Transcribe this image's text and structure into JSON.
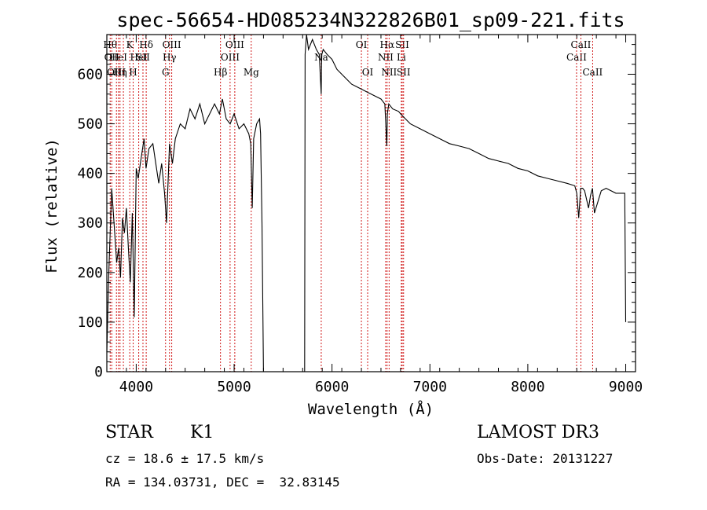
{
  "chart_data": {
    "type": "line",
    "title": "spec-56654-HD085234N322826B01_sp09-221.fits",
    "xlabel": "Wavelength (Å)",
    "ylabel": "Flux (relative)",
    "xlim": [
      3700,
      9100
    ],
    "ylim": [
      0,
      680
    ],
    "xticks": [
      4000,
      5000,
      6000,
      7000,
      8000,
      9000
    ],
    "yticks": [
      0,
      100,
      200,
      300,
      400,
      500,
      600
    ],
    "line_color": "#000000",
    "marker_color": "#cc0000",
    "series": [
      {
        "name": "flux",
        "x": [
          3700,
          3720,
          3750,
          3780,
          3800,
          3820,
          3840,
          3860,
          3880,
          3900,
          3920,
          3940,
          3960,
          3980,
          4000,
          4020,
          4050,
          4080,
          4100,
          4130,
          4170,
          4200,
          4230,
          4260,
          4290,
          4310,
          4340,
          4370,
          4400,
          4450,
          4500,
          4550,
          4600,
          4650,
          4700,
          4750,
          4800,
          4850,
          4880,
          4920,
          4960,
          5000,
          5050,
          5100,
          5150,
          5170,
          5185,
          5200,
          5230,
          5260,
          5270,
          5285,
          5300,
          5720,
          5725,
          5740,
          5760,
          5800,
          5840,
          5870,
          5890,
          5893,
          5896,
          5910,
          5950,
          6000,
          6050,
          6100,
          6150,
          6200,
          6250,
          6300,
          6350,
          6400,
          6450,
          6500,
          6540,
          6560,
          6565,
          6580,
          6620,
          6680,
          6700,
          6750,
          6800,
          6900,
          7000,
          7100,
          7200,
          7300,
          7400,
          7500,
          7600,
          7700,
          7800,
          7900,
          8000,
          8100,
          8200,
          8300,
          8400,
          8480,
          8500,
          8520,
          8540,
          8560,
          8580,
          8620,
          8640,
          8660,
          8680,
          8750,
          8800,
          8850,
          8900,
          8960,
          8990,
          9000
        ],
        "y": [
          40,
          200,
          370,
          280,
          220,
          250,
          190,
          310,
          280,
          330,
          250,
          180,
          320,
          110,
          410,
          390,
          430,
          470,
          410,
          450,
          460,
          420,
          380,
          420,
          360,
          300,
          460,
          420,
          470,
          500,
          490,
          530,
          510,
          540,
          500,
          520,
          540,
          520,
          550,
          510,
          500,
          520,
          490,
          500,
          480,
          460,
          330,
          470,
          500,
          510,
          480,
          300,
          0,
          0,
          640,
          680,
          650,
          670,
          650,
          640,
          560,
          620,
          640,
          650,
          640,
          630,
          610,
          600,
          590,
          580,
          575,
          570,
          565,
          560,
          555,
          550,
          540,
          455,
          520,
          540,
          530,
          525,
          520,
          510,
          500,
          490,
          480,
          470,
          460,
          455,
          450,
          440,
          430,
          425,
          420,
          410,
          405,
          395,
          390,
          385,
          380,
          375,
          360,
          310,
          370,
          370,
          365,
          330,
          355,
          370,
          320,
          365,
          370,
          365,
          360,
          360,
          360,
          100
        ]
      }
    ],
    "lines": [
      {
        "x": 3734,
        "label": "Hθ",
        "row": 1
      },
      {
        "x": 3750,
        "label": "OII",
        "row": 2
      },
      {
        "x": 3798,
        "label": "OIII",
        "row": 3
      },
      {
        "x": 3819,
        "label": "HeI",
        "row": 2
      },
      {
        "x": 3835,
        "label": "Hη",
        "row": 3
      },
      {
        "x": 3869,
        "label": "",
        "row": 0
      },
      {
        "x": 3934,
        "label": "K",
        "row": 1
      },
      {
        "x": 3969,
        "label": "H",
        "row": 3
      },
      {
        "x": 4026,
        "label": "HeI",
        "row": 2
      },
      {
        "x": 4069,
        "label": "SII",
        "row": 2
      },
      {
        "x": 4102,
        "label": "Hδ",
        "row": 1
      },
      {
        "x": 4300,
        "label": "G",
        "row": 3
      },
      {
        "x": 4340,
        "label": "Hγ",
        "row": 2
      },
      {
        "x": 4363,
        "label": "OIII",
        "row": 1
      },
      {
        "x": 4861,
        "label": "Hβ",
        "row": 3
      },
      {
        "x": 4959,
        "label": "OIII",
        "row": 2
      },
      {
        "x": 5007,
        "label": "OIII",
        "row": 1
      },
      {
        "x": 5175,
        "label": "Mg",
        "row": 3
      },
      {
        "x": 5890,
        "label": "Na",
        "row": 2
      },
      {
        "x": 6300,
        "label": "OI",
        "row": 1
      },
      {
        "x": 6364,
        "label": "OI",
        "row": 3
      },
      {
        "x": 6548,
        "label": "NII",
        "row": 2
      },
      {
        "x": 6563,
        "label": "Hα",
        "row": 1
      },
      {
        "x": 6583,
        "label": "NII",
        "row": 3
      },
      {
        "x": 6708,
        "label": "Li",
        "row": 2
      },
      {
        "x": 6717,
        "label": "SII",
        "row": 1
      },
      {
        "x": 6731,
        "label": "SII",
        "row": 3
      },
      {
        "x": 8498,
        "label": "CaII",
        "row": 2
      },
      {
        "x": 8542,
        "label": "CaII",
        "row": 1
      },
      {
        "x": 8662,
        "label": "CaII",
        "row": 3
      }
    ]
  },
  "info": {
    "class": "STAR",
    "subclass": "K1",
    "survey": "LAMOST DR3",
    "cz": "cz = 18.6 ± 17.5 km/s",
    "obs_date": "Obs-Date: 20131227",
    "radec": "RA = 134.03731, DEC =  32.83145"
  }
}
